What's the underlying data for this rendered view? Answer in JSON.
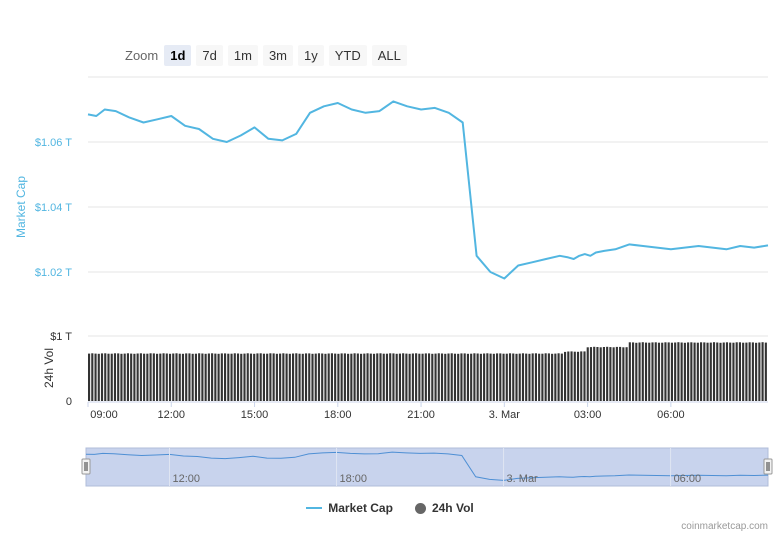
{
  "zoom": {
    "label": "Zoom",
    "buttons": [
      "1d",
      "7d",
      "1m",
      "3m",
      "1y",
      "YTD",
      "ALL"
    ],
    "active": "1d"
  },
  "legend": {
    "market_cap": "Market Cap",
    "volume": "24h Vol"
  },
  "credits": "coinmarketcap.com",
  "colors": {
    "market_cap": "#52b6e1",
    "volume": "#333333",
    "grid": "#e6e6e6",
    "navigator_fill": "#c8d3ed"
  },
  "chart_data": [
    {
      "type": "line",
      "name": "market-cap",
      "ylabel": "Market Cap",
      "yticks": [
        1.02,
        1.04,
        1.06
      ],
      "ytick_labels": [
        "$1.02 T",
        "$1.04 T",
        "$1.06 T"
      ],
      "x": [
        0.0,
        0.3,
        0.6,
        1.0,
        1.5,
        2.0,
        2.5,
        3.0,
        3.5,
        4.0,
        4.5,
        5.0,
        5.5,
        6.0,
        6.5,
        7.0,
        7.5,
        8.0,
        8.5,
        9.0,
        9.5,
        10.0,
        10.5,
        11.0,
        11.5,
        12.0,
        12.5,
        13.0,
        13.5,
        14.0,
        14.5,
        15.0,
        15.5,
        16.0,
        16.5,
        17.0,
        17.3,
        17.5,
        17.7,
        17.9,
        18.1,
        18.3,
        18.6,
        19.0,
        19.5,
        20.0,
        20.5,
        21.0,
        21.5,
        22.0,
        22.5,
        23.0,
        23.5,
        24.0,
        24.5
      ],
      "y": [
        1.0685,
        1.068,
        1.07,
        1.0695,
        1.0675,
        1.066,
        1.067,
        1.068,
        1.065,
        1.064,
        1.061,
        1.06,
        1.062,
        1.0645,
        1.061,
        1.0605,
        1.0625,
        1.069,
        1.071,
        1.072,
        1.07,
        1.069,
        1.0695,
        1.0725,
        1.071,
        1.07,
        1.0705,
        1.069,
        1.066,
        1.025,
        1.02,
        1.018,
        1.022,
        1.023,
        1.024,
        1.025,
        1.0245,
        1.024,
        1.025,
        1.0255,
        1.025,
        1.026,
        1.0265,
        1.027,
        1.0285,
        1.028,
        1.0275,
        1.027,
        1.0275,
        1.028,
        1.0275,
        1.027,
        1.028,
        1.0275,
        1.0282
      ]
    },
    {
      "type": "bar",
      "name": "volume",
      "ylabel": "24h Vol",
      "yticks": [
        0,
        1
      ],
      "ytick_labels": [
        "0",
        "$1 T"
      ],
      "segments": [
        {
          "from": 0,
          "to": 17.2,
          "value": 0.73
        },
        {
          "from": 17.2,
          "to": 18.0,
          "value": 0.76
        },
        {
          "from": 18.0,
          "to": 19.5,
          "value": 0.83
        },
        {
          "from": 19.5,
          "to": 24.5,
          "value": 0.9
        }
      ]
    }
  ],
  "x_axis": {
    "tick_labels": [
      "09:00",
      "12:00",
      "15:00",
      "18:00",
      "21:00",
      "3. Mar",
      "03:00",
      "06:00"
    ]
  },
  "navigator": {
    "tick_labels": [
      "12:00",
      "18:00",
      "3. Mar",
      "06:00"
    ]
  }
}
